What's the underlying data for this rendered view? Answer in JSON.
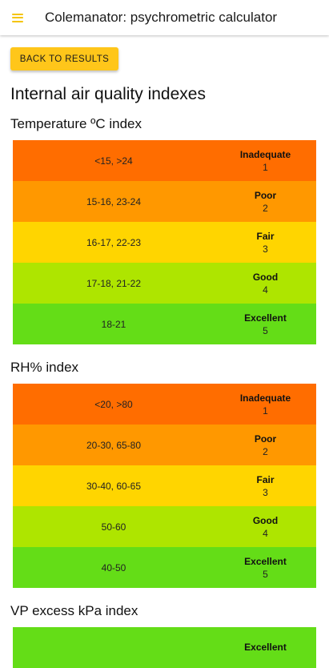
{
  "app": {
    "title": "Colemanator: psychrometric calculator",
    "back_label": "BACK TO RESULTS",
    "page_heading": "Internal air quality indexes",
    "accent": "#ffc61a"
  },
  "level_colors": [
    "#ff6d00",
    "#ff9800",
    "#ffd500",
    "#aee500",
    "#64dd17"
  ],
  "sections": [
    {
      "title": "Temperature ºC index",
      "rows": [
        {
          "range": "<15, >24",
          "label": "Inadequate",
          "num": "1"
        },
        {
          "range": "15-16, 23-24",
          "label": "Poor",
          "num": "2"
        },
        {
          "range": "16-17, 22-23",
          "label": "Fair",
          "num": "3"
        },
        {
          "range": "17-18, 21-22",
          "label": "Good",
          "num": "4"
        },
        {
          "range": "18-21",
          "label": "Excellent",
          "num": "5"
        }
      ]
    },
    {
      "title": "RH% index",
      "rows": [
        {
          "range": "<20, >80",
          "label": "Inadequate",
          "num": "1"
        },
        {
          "range": "20-30, 65-80",
          "label": "Poor",
          "num": "2"
        },
        {
          "range": "30-40, 60-65",
          "label": "Fair",
          "num": "3"
        },
        {
          "range": "50-60",
          "label": "Good",
          "num": "4"
        },
        {
          "range": "40-50",
          "label": "Excellent",
          "num": "5"
        }
      ]
    },
    {
      "title": "VP excess kPa index",
      "rows": [
        {
          "range": "",
          "label": "Excellent",
          "num": ""
        }
      ]
    }
  ]
}
